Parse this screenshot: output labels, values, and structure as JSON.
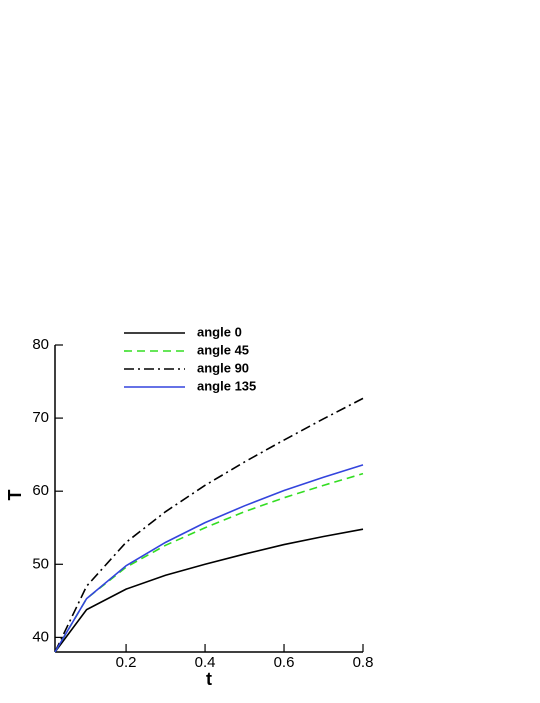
{
  "chart_data": {
    "type": "line",
    "x_label": "t",
    "y_label": "T",
    "x": [
      0.02,
      0.1,
      0.2,
      0.3,
      0.4,
      0.5,
      0.6,
      0.7,
      0.8
    ],
    "series": [
      {
        "name": "angle 0",
        "color": "#000000",
        "style": "solid",
        "values": [
          38,
          43.8,
          46.6,
          48.5,
          50.0,
          51.4,
          52.7,
          53.8,
          54.8
        ]
      },
      {
        "name": "angle 45",
        "color": "#33dd22",
        "style": "dashed",
        "values": [
          38,
          45.3,
          49.6,
          52.6,
          55.0,
          57.2,
          59.1,
          60.8,
          62.4
        ]
      },
      {
        "name": "angle 90",
        "color": "#000000",
        "style": "dashdot",
        "values": [
          38,
          47.0,
          53.0,
          57.2,
          60.8,
          64.0,
          67.0,
          69.9,
          72.7
        ]
      },
      {
        "name": "angle 135",
        "color": "#3344dd",
        "style": "solid",
        "values": [
          38,
          45.3,
          49.8,
          53.0,
          55.7,
          58.0,
          60.1,
          61.9,
          63.6
        ]
      }
    ],
    "xlim": [
      0.02,
      0.8
    ],
    "ylim": [
      38,
      80
    ],
    "xticks": [
      0.2,
      0.4,
      0.6,
      0.8
    ],
    "yticks": [
      40,
      50,
      60,
      70,
      80
    ],
    "grid": false,
    "legend": "top-left"
  }
}
